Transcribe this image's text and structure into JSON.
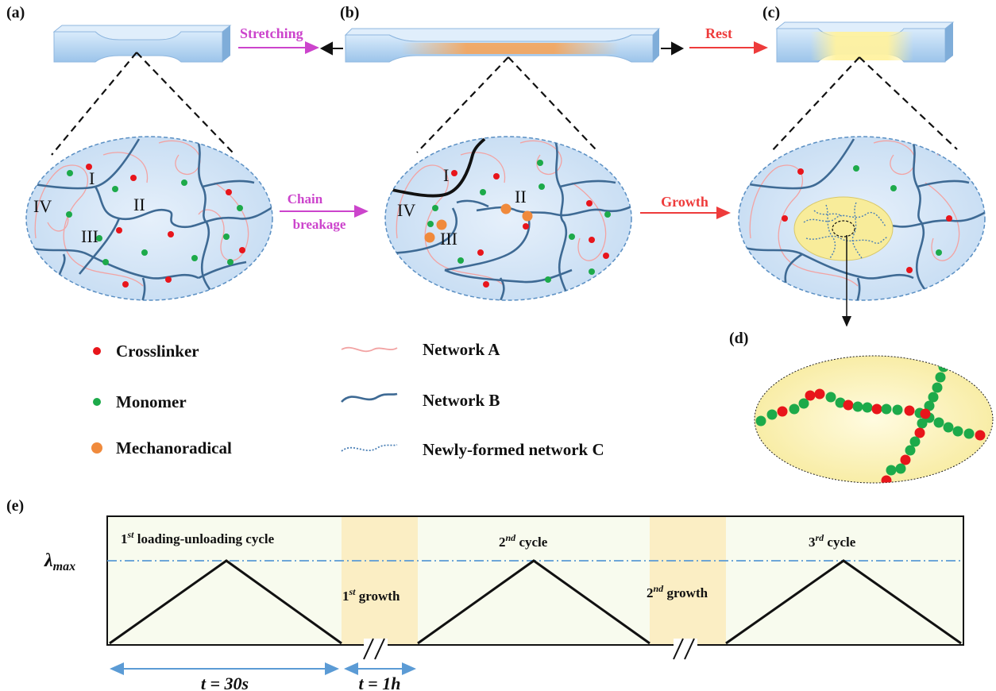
{
  "panels": {
    "a": "(a)",
    "b": "(b)",
    "c": "(c)",
    "d": "(d)",
    "e": "(e)"
  },
  "arrows": {
    "stretching": "Stretching",
    "rest": "Rest",
    "chain_line1": "Chain",
    "chain_line2": "breakage",
    "growth": "Growth"
  },
  "roman": {
    "I": "I",
    "II": "II",
    "III": "III",
    "IV": "IV"
  },
  "legend": {
    "crosslinker": "Crosslinker",
    "monomer": "Monomer",
    "mechanoradical": "Mechanoradical",
    "network_a": "Network A",
    "network_b": "Network B",
    "network_c": "Newly-formed network C"
  },
  "timeline": {
    "lambda": "λ",
    "lambda_sub": "max",
    "cycle1_num": "1",
    "cycle1_sup": "st",
    "cycle1_text": " loading-unloading cycle",
    "cycle2_num": "2",
    "cycle2_sup": "nd",
    "cycle2_text": " cycle",
    "cycle3_num": "3",
    "cycle3_sup": "rd",
    "cycle3_text": " cycle",
    "growth1_num": "1",
    "growth1_sup": "st",
    "growth1_text": " growth",
    "growth2_num": "2",
    "growth2_sup": "nd",
    "growth2_text": " growth",
    "t1_label": "t = 30s",
    "t2_label": "t = 1h"
  },
  "colors": {
    "crosslinker": "#e8151b",
    "monomer": "#1daa4a",
    "mechanoradical": "#f08a3c",
    "network_a": "#f2a3a3",
    "network_b": "#3e6a94",
    "network_c": "#4a7fb5",
    "stretch_arrow": "#cc44cc",
    "rest_arrow": "#ee3b3b",
    "growth_band": "#fbeec4",
    "timeline_bg": "#f8fbee",
    "lambda_line": "#5b9bd5",
    "ellipse_fill": "#d6e7f7",
    "specimen": "#a9cdee"
  }
}
